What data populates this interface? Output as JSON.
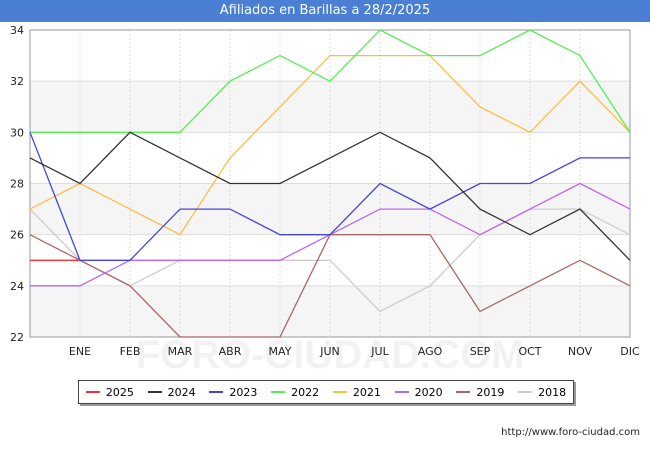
{
  "chart_data": {
    "type": "line",
    "title": "Afiliados en Barillas a 28/2/2025",
    "categories": [
      "",
      "ENE",
      "FEB",
      "MAR",
      "ABR",
      "MAY",
      "JUN",
      "JUL",
      "AGO",
      "SEP",
      "OCT",
      "NOV",
      "DIC"
    ],
    "ylim": [
      22,
      34
    ],
    "yticks": [
      22,
      24,
      26,
      28,
      30,
      32,
      34
    ],
    "xlabel": "",
    "ylabel": "",
    "grid": true,
    "legend_position": "bottom",
    "series": [
      {
        "name": "2025",
        "color": "#ee3333",
        "values": [
          25,
          25,
          null,
          null,
          null,
          null,
          null,
          null,
          null,
          null,
          null,
          null,
          null
        ]
      },
      {
        "name": "2024",
        "color": "#333333",
        "values": [
          29,
          28,
          30,
          29,
          28,
          28,
          29,
          30,
          29,
          27,
          26,
          27,
          25
        ]
      },
      {
        "name": "2023",
        "color": "#4444dd",
        "values": [
          30,
          25,
          25,
          27,
          27,
          26,
          26,
          28,
          27,
          28,
          28,
          29,
          29
        ]
      },
      {
        "name": "2022",
        "color": "#55ee55",
        "values": [
          30,
          30,
          30,
          30,
          32,
          33,
          32,
          34,
          33,
          33,
          34,
          33,
          30
        ]
      },
      {
        "name": "2021",
        "color": "#ffbb44",
        "values": [
          27,
          28,
          27,
          26,
          29,
          31,
          33,
          33,
          33,
          31,
          30,
          32,
          30
        ]
      },
      {
        "name": "2020",
        "color": "#bb66ee",
        "values": [
          24,
          24,
          25,
          25,
          25,
          25,
          26,
          27,
          27,
          26,
          27,
          28,
          27
        ]
      },
      {
        "name": "2019",
        "color": "#aa6666",
        "values": [
          26,
          25,
          24,
          22,
          22,
          22,
          26,
          26,
          26,
          23,
          24,
          25,
          24
        ]
      },
      {
        "name": "2018",
        "color": "#cccccc",
        "values": [
          27,
          25,
          24,
          25,
          25,
          25,
          25,
          23,
          24,
          26,
          27,
          27,
          26
        ]
      }
    ]
  },
  "watermark": "FORO-CIUDAD.COM",
  "source_url": "http://www.foro-ciudad.com"
}
